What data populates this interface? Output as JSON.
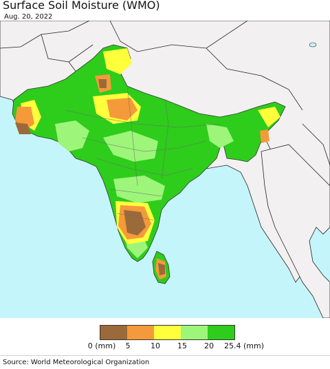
{
  "header": {
    "title": "Surface Soil Moisture (WMO)",
    "date": "Aug. 20, 2022"
  },
  "legend": {
    "colors": [
      "#9b6a3a",
      "#f59a3a",
      "#ffff3c",
      "#9df57a",
      "#2ecc1b"
    ],
    "ticks": [
      "0 (mm)",
      "5",
      "10",
      "15",
      "20",
      "25.4 (mm)"
    ]
  },
  "map": {
    "ocean_color": "#c4f5fb",
    "land_nodata_color": "#f3f0f2"
  },
  "footer": {
    "source": "Source: World Meteorological Organization"
  }
}
